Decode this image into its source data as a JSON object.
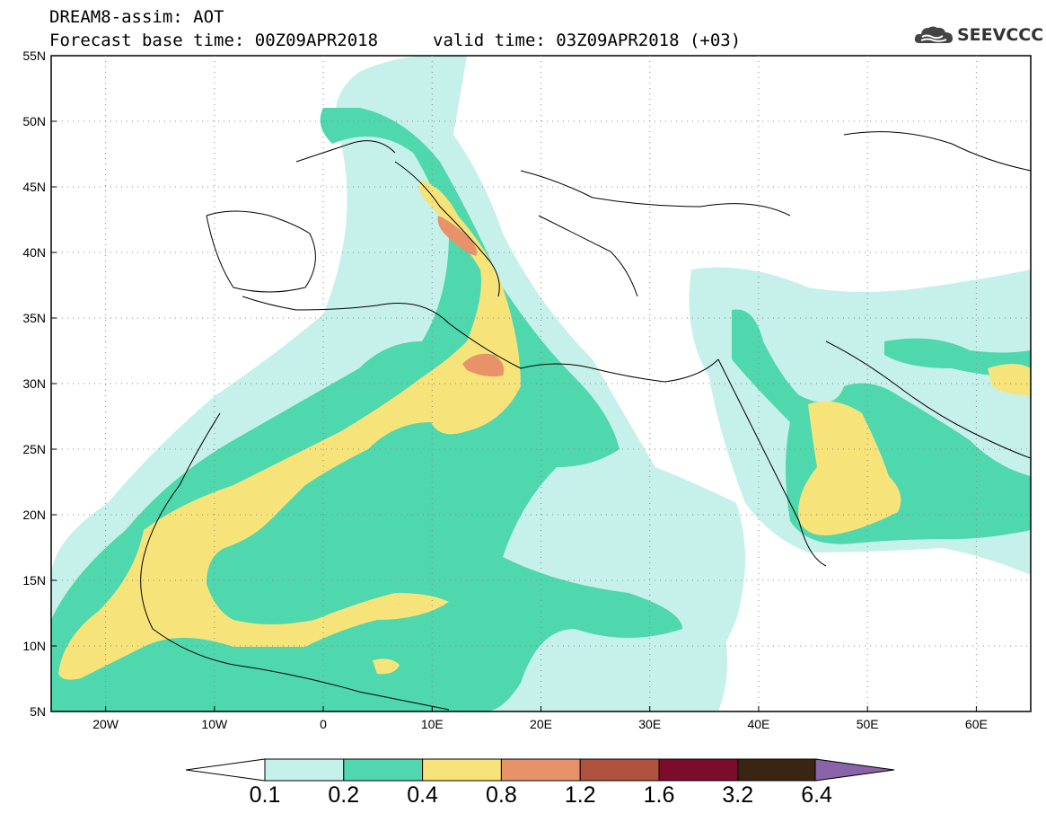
{
  "title": {
    "line1": "DREAM8-assim: AOT",
    "base_time": "Forecast base time: 00Z09APR2018",
    "valid_time": "valid time: 03Z09APR2018 (+03)"
  },
  "logo": {
    "text": "SEEVCCC",
    "icon": "cloud-icon"
  },
  "map": {
    "lon_range": [
      -25,
      65
    ],
    "lat_range": [
      5,
      55
    ],
    "lat_ticks": [
      "5N",
      "10N",
      "15N",
      "20N",
      "25N",
      "30N",
      "35N",
      "40N",
      "45N",
      "50N",
      "55N"
    ],
    "lon_ticks": [
      "20W",
      "10W",
      "0",
      "10E",
      "20E",
      "30E",
      "40E",
      "50E",
      "60E"
    ],
    "gridlines": "dotted"
  },
  "colorbar": {
    "labels": [
      "0.1",
      "0.2",
      "0.4",
      "0.8",
      "1.2",
      "1.6",
      "3.2",
      "6.4"
    ],
    "colors": [
      "#ffffff",
      "#c6f0ea",
      "#4fd7ad",
      "#f6e47a",
      "#e8926a",
      "#b0523e",
      "#7d0b2c",
      "#3a2412",
      "#8b63a8"
    ]
  }
}
